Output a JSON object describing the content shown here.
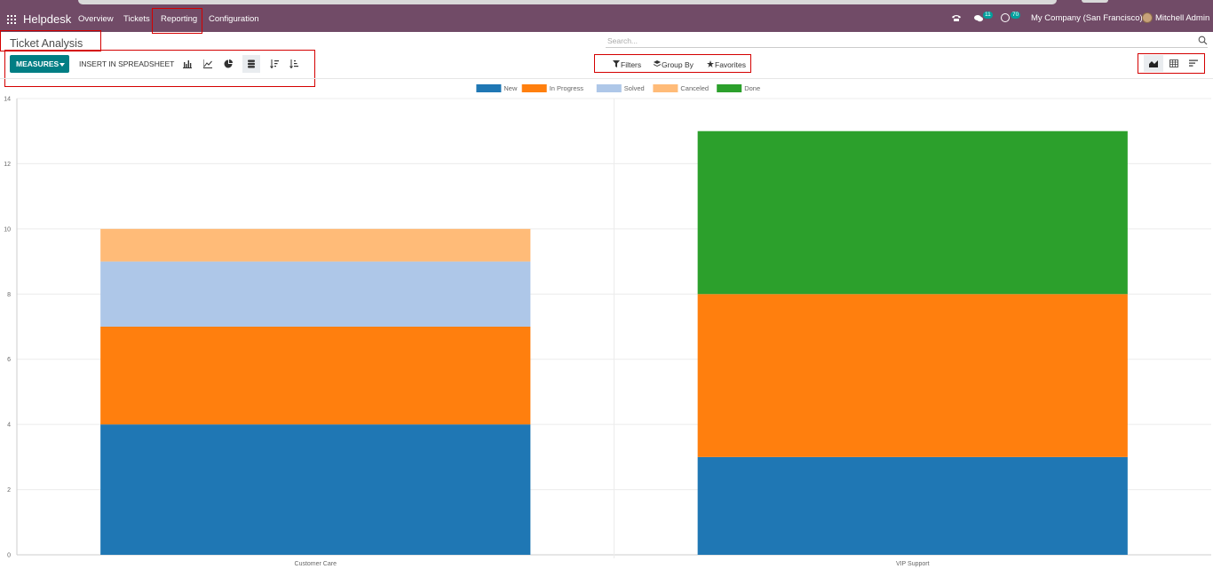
{
  "topbar": {
    "app_name": "Helpdesk",
    "menu": [
      "Overview",
      "Tickets",
      "Reporting",
      "Configuration"
    ],
    "chat_count": "11",
    "activity_count": "70",
    "company": "My Company (San Francisco)",
    "user": "Mitchell Admin"
  },
  "control_panel": {
    "title": "Ticket Analysis",
    "search_placeholder": "Search...",
    "measures_label": "MEASURES",
    "insert_label": "INSERT IN SPREADSHEET",
    "filters_label": "Filters",
    "groupby_label": "Group By",
    "favorites_label": "Favorites"
  },
  "colors": {
    "navbar": "#714B67",
    "primary": "#017E84",
    "highlight_box": "#d40000"
  },
  "chart_data": {
    "type": "bar",
    "stacked": true,
    "categories": [
      "Customer Care",
      "VIP Support"
    ],
    "series": [
      {
        "name": "New",
        "color": "#1f77b4",
        "values": [
          4,
          3
        ]
      },
      {
        "name": "In Progress",
        "color": "#ff7f0e",
        "values": [
          3,
          5
        ]
      },
      {
        "name": "Solved",
        "color": "#aec7e8",
        "values": [
          2,
          0
        ]
      },
      {
        "name": "Canceled",
        "color": "#ffbb78",
        "values": [
          1,
          0
        ]
      },
      {
        "name": "Done",
        "color": "#2ca02c",
        "values": [
          0,
          5
        ]
      }
    ],
    "ylim": [
      0,
      14
    ],
    "yticks": [
      0,
      2,
      4,
      6,
      8,
      10,
      12,
      14
    ],
    "legend_position": "top-center",
    "grid": true
  }
}
